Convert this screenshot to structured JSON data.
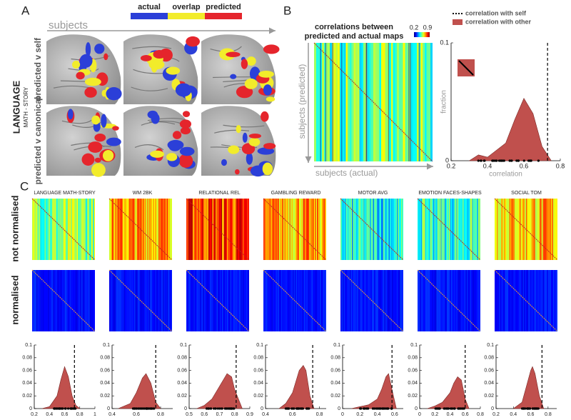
{
  "panel_a": {
    "label": "A",
    "legend": [
      {
        "name": "actual",
        "color": "#2b3fd8"
      },
      {
        "name": "overlap",
        "color": "#f2ec2b"
      },
      {
        "name": "predicted",
        "color": "#e5252c"
      }
    ],
    "axis_label": "subjects",
    "rows": [
      "predicted v self",
      "predicted v canonical"
    ],
    "task": "LANGUAGE",
    "contrast": "MATH - STORY"
  },
  "panel_b": {
    "label": "B",
    "title_lines": [
      "correlations between",
      "predicted and actual maps"
    ],
    "colorbar_ticks": [
      0.2,
      0.9
    ],
    "ylabel": "subjects (predicted)",
    "xlabel": "subjects (actual)"
  },
  "panel_c": {
    "label": "C",
    "rows": [
      "not normalised",
      "normalised"
    ]
  },
  "chart_data": [
    {
      "type": "area",
      "xlabel": "correlation",
      "ylabel": "fraction",
      "legend": {
        "self": "correlation with self",
        "other": "correlation with other"
      },
      "x": [
        0.3,
        0.35,
        0.4,
        0.5,
        0.55,
        0.6,
        0.65,
        0.7,
        0.75
      ],
      "values": [
        0,
        0.005,
        0.003,
        0.015,
        0.035,
        0.053,
        0.04,
        0.012,
        0
      ],
      "self_value": 0.73,
      "color": "#c0504d",
      "xlim": [
        0.2,
        0.8
      ],
      "xticks": [
        0.2,
        0.4,
        0.6,
        0.8
      ],
      "ylim": [
        0,
        0.1
      ],
      "yticks": [
        0,
        0.1
      ]
    },
    {
      "type": "area",
      "title": "LANGUAGE MATH-STORY",
      "x": [
        0.3,
        0.4,
        0.5,
        0.55,
        0.6,
        0.65,
        0.7,
        0.75,
        0.8
      ],
      "values": [
        0,
        0.003,
        0.02,
        0.045,
        0.066,
        0.05,
        0.02,
        0.005,
        0
      ],
      "self_value": 0.73,
      "color": "#c0504d",
      "xlim": [
        0.2,
        1
      ],
      "xticks": [
        0.2,
        0.4,
        0.6,
        0.8,
        1
      ],
      "ylim": [
        0,
        0.1
      ],
      "yticks": [
        0,
        0.02,
        0.04,
        0.06,
        0.08,
        0.1
      ]
    },
    {
      "type": "area",
      "title": "WM 2BK",
      "x": [
        0.45,
        0.55,
        0.6,
        0.65,
        0.68,
        0.72,
        0.76,
        0.8
      ],
      "values": [
        0,
        0.008,
        0.025,
        0.048,
        0.055,
        0.04,
        0.01,
        0
      ],
      "self_value": 0.76,
      "color": "#c0504d",
      "xlim": [
        0.4,
        0.9
      ],
      "xticks": [
        0.4,
        0.6,
        0.8
      ],
      "ylim": [
        0,
        0.1
      ],
      "yticks": [
        0,
        0.02,
        0.04,
        0.06,
        0.08,
        0.1
      ]
    },
    {
      "type": "area",
      "title": "RELATIONAL REL",
      "x": [
        0.55,
        0.6,
        0.65,
        0.7,
        0.75,
        0.78,
        0.8,
        0.85
      ],
      "values": [
        0,
        0.005,
        0.015,
        0.035,
        0.055,
        0.05,
        0.03,
        0
      ],
      "self_value": 0.81,
      "color": "#c0504d",
      "xlim": [
        0.5,
        0.9
      ],
      "xticks": [
        0.5,
        0.6,
        0.7,
        0.8,
        0.9
      ],
      "ylim": [
        0,
        0.1
      ],
      "yticks": [
        0,
        0.02,
        0.04,
        0.06,
        0.08,
        0.1
      ]
    },
    {
      "type": "area",
      "title": "GAMBLING REWARD",
      "x": [
        0.5,
        0.55,
        0.6,
        0.65,
        0.68,
        0.7,
        0.73,
        0.76
      ],
      "values": [
        0,
        0.008,
        0.025,
        0.06,
        0.068,
        0.06,
        0.02,
        0
      ],
      "self_value": 0.75,
      "color": "#c0504d",
      "xlim": [
        0.4,
        0.85
      ],
      "xticks": [
        0.4,
        0.6,
        0.8
      ],
      "ylim": [
        0,
        0.1
      ],
      "yticks": [
        0,
        0.02,
        0.04,
        0.06,
        0.08,
        0.1
      ]
    },
    {
      "type": "area",
      "title": "MOTOR AVG",
      "x": [
        0.1,
        0.2,
        0.3,
        0.4,
        0.45,
        0.5,
        0.53,
        0.57,
        0.62
      ],
      "values": [
        0,
        0.003,
        0.006,
        0.015,
        0.03,
        0.05,
        0.055,
        0.03,
        0
      ],
      "self_value": 0.57,
      "color": "#c0504d",
      "xlim": [
        0,
        0.7
      ],
      "xticks": [
        0,
        0.2,
        0.4,
        0.6
      ],
      "ylim": [
        0,
        0.1
      ],
      "yticks": [
        0,
        0.02,
        0.04,
        0.06,
        0.08,
        0.1
      ]
    },
    {
      "type": "area",
      "title": "EMOTION FACES-SHAPES",
      "x": [
        0.1,
        0.2,
        0.3,
        0.4,
        0.45,
        0.5,
        0.55,
        0.6,
        0.65
      ],
      "values": [
        0,
        0.004,
        0.01,
        0.025,
        0.04,
        0.05,
        0.045,
        0.015,
        0
      ],
      "self_value": 0.6,
      "color": "#c0504d",
      "xlim": [
        0,
        0.8
      ],
      "xticks": [
        0,
        0.2,
        0.4,
        0.6,
        0.8
      ],
      "ylim": [
        0,
        0.1
      ],
      "yticks": [
        0,
        0.02,
        0.04,
        0.06,
        0.08,
        0.1
      ]
    },
    {
      "type": "area",
      "title": "SOCIAL TOM",
      "x": [
        0.4,
        0.5,
        0.55,
        0.6,
        0.62,
        0.65,
        0.7,
        0.75
      ],
      "values": [
        0,
        0.01,
        0.035,
        0.06,
        0.066,
        0.055,
        0.02,
        0
      ],
      "self_value": 0.73,
      "color": "#c0504d",
      "xlim": [
        0.2,
        0.9
      ],
      "xticks": [
        0.2,
        0.4,
        0.6,
        0.8
      ],
      "ylim": [
        0,
        0.1
      ],
      "yticks": [
        0,
        0.02,
        0.04,
        0.06,
        0.08,
        0.1
      ]
    }
  ]
}
